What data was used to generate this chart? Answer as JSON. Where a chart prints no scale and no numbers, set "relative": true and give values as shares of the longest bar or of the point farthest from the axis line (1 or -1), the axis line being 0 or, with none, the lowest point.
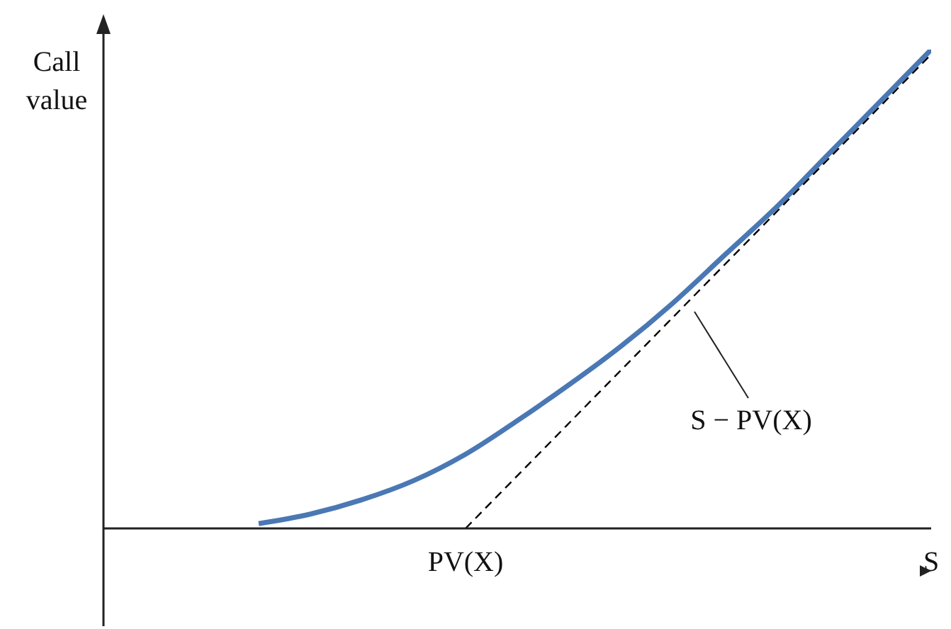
{
  "chart_data": {
    "type": "line",
    "relative": true,
    "ylabel": "Call value",
    "annotations": [
      "S − PV(X)"
    ],
    "categories": [
      null,
      null,
      null,
      null,
      null,
      null,
      null,
      "PV(X)",
      null,
      null,
      null,
      null,
      null,
      null,
      null,
      null,
      "S"
    ],
    "series": [
      {
        "color": "#4a78b4",
        "values": [
          null,
          null,
          null,
          0.01,
          0.03,
          0.06,
          0.1,
          0.155,
          0.225,
          0.3,
          0.38,
          0.47,
          0.57,
          0.67,
          0.78,
          0.89,
          1
        ]
      },
      {
        "color": "#000000",
        "line_style": "dashed",
        "values": [
          null,
          null,
          null,
          null,
          null,
          null,
          null,
          0,
          0.11,
          0.22,
          0.33,
          0.44,
          0.55,
          0.66,
          0.77,
          0.88,
          0.99
        ]
      }
    ],
    "legend": false,
    "grid": false,
    "marker": "none"
  }
}
